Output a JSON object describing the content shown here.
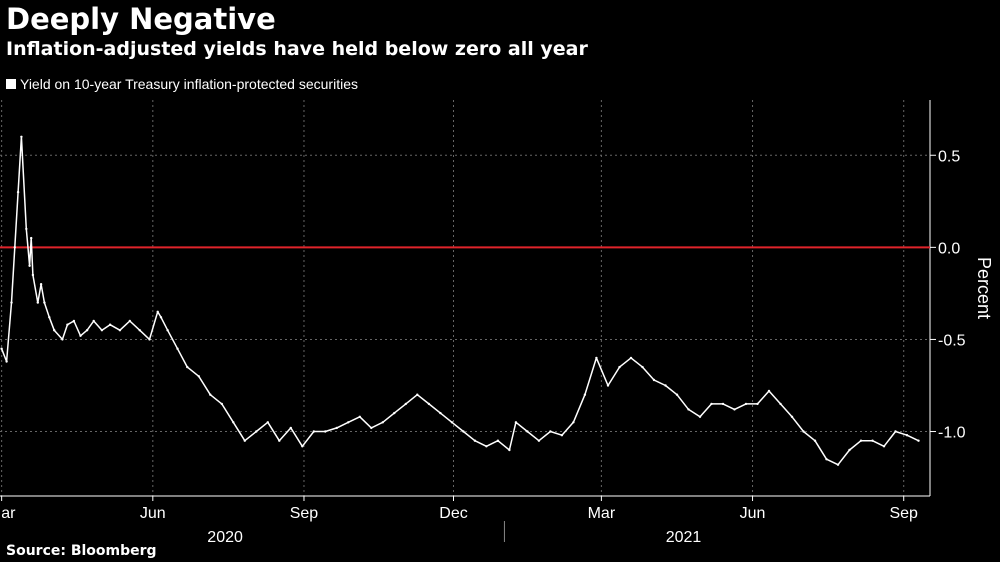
{
  "title": "Deeply Negative",
  "subtitle": "Inflation-adjusted yields have held below zero all year",
  "source": "Source: Bloomberg",
  "colors": {
    "background": "#000000",
    "series": "#ffffff",
    "zero_line": "#e0242b",
    "grid": "#666666"
  },
  "chart_data": {
    "type": "line",
    "series": [
      {
        "name": "Yield on 10-year Treasury inflation-protected securities",
        "x": [
          "2020-03-01",
          "2020-03-04",
          "2020-03-07",
          "2020-03-09",
          "2020-03-11",
          "2020-03-13",
          "2020-03-16",
          "2020-03-18",
          "2020-03-19",
          "2020-03-20",
          "2020-03-23",
          "2020-03-25",
          "2020-03-27",
          "2020-03-30",
          "2020-04-02",
          "2020-04-07",
          "2020-04-10",
          "2020-04-14",
          "2020-04-18",
          "2020-04-22",
          "2020-04-26",
          "2020-05-01",
          "2020-05-06",
          "2020-05-12",
          "2020-05-18",
          "2020-05-24",
          "2020-05-30",
          "2020-06-04",
          "2020-06-06",
          "2020-06-10",
          "2020-06-16",
          "2020-06-22",
          "2020-06-29",
          "2020-07-06",
          "2020-07-13",
          "2020-07-20",
          "2020-07-27",
          "2020-08-03",
          "2020-08-10",
          "2020-08-17",
          "2020-08-24",
          "2020-08-31",
          "2020-09-07",
          "2020-09-14",
          "2020-09-21",
          "2020-09-28",
          "2020-10-05",
          "2020-10-12",
          "2020-10-19",
          "2020-10-26",
          "2020-11-02",
          "2020-11-09",
          "2020-11-16",
          "2020-11-23",
          "2020-11-30",
          "2020-12-07",
          "2020-12-14",
          "2020-12-21",
          "2020-12-28",
          "2021-01-04",
          "2021-01-08",
          "2021-01-15",
          "2021-01-22",
          "2021-01-29",
          "2021-02-05",
          "2021-02-12",
          "2021-02-19",
          "2021-02-26",
          "2021-03-05",
          "2021-03-12",
          "2021-03-19",
          "2021-03-26",
          "2021-04-02",
          "2021-04-09",
          "2021-04-16",
          "2021-04-23",
          "2021-04-30",
          "2021-05-07",
          "2021-05-14",
          "2021-05-21",
          "2021-05-28",
          "2021-06-04",
          "2021-06-11",
          "2021-06-18",
          "2021-06-25",
          "2021-07-02",
          "2021-07-09",
          "2021-07-16",
          "2021-07-23",
          "2021-07-30",
          "2021-08-06",
          "2021-08-13",
          "2021-08-20",
          "2021-08-27",
          "2021-09-03",
          "2021-09-10"
        ],
        "values": [
          -0.55,
          -0.62,
          -0.3,
          0.0,
          0.3,
          0.6,
          0.1,
          -0.1,
          0.05,
          -0.15,
          -0.3,
          -0.2,
          -0.3,
          -0.38,
          -0.45,
          -0.5,
          -0.42,
          -0.4,
          -0.48,
          -0.45,
          -0.4,
          -0.45,
          -0.42,
          -0.45,
          -0.4,
          -0.45,
          -0.5,
          -0.35,
          -0.38,
          -0.45,
          -0.55,
          -0.65,
          -0.7,
          -0.8,
          -0.85,
          -0.95,
          -1.05,
          -1.0,
          -0.95,
          -1.05,
          -0.98,
          -1.08,
          -1.0,
          -1.0,
          -0.98,
          -0.95,
          -0.92,
          -0.98,
          -0.95,
          -0.9,
          -0.85,
          -0.8,
          -0.85,
          -0.9,
          -0.95,
          -1.0,
          -1.05,
          -1.08,
          -1.05,
          -1.1,
          -0.95,
          -1.0,
          -1.05,
          -1.0,
          -1.02,
          -0.95,
          -0.8,
          -0.6,
          -0.75,
          -0.65,
          -0.6,
          -0.65,
          -0.72,
          -0.75,
          -0.8,
          -0.88,
          -0.92,
          -0.85,
          -0.85,
          -0.88,
          -0.85,
          -0.85,
          -0.78,
          -0.85,
          -0.92,
          -1.0,
          -1.05,
          -1.15,
          -1.18,
          -1.1,
          -1.05,
          -1.05,
          -1.08,
          -1.0,
          -1.02,
          -1.05
        ]
      }
    ],
    "ylabel": "Percent",
    "ylim": [
      -1.35,
      0.8
    ],
    "yticks": [
      0.5,
      0.0,
      -0.5,
      -1.0
    ],
    "ytick_labels": [
      "0.5",
      "0.0",
      "-0.5",
      "-1.0"
    ],
    "xlim": [
      "2020-02-29",
      "2021-09-17"
    ],
    "month_ticks": [
      {
        "date": "2020-03-01",
        "label": "Mar"
      },
      {
        "date": "2020-06-01",
        "label": "Jun"
      },
      {
        "date": "2020-09-01",
        "label": "Sep"
      },
      {
        "date": "2020-12-01",
        "label": "Dec"
      },
      {
        "date": "2021-03-01",
        "label": "Mar"
      },
      {
        "date": "2021-06-01",
        "label": "Jun"
      },
      {
        "date": "2021-09-01",
        "label": "Sep"
      }
    ],
    "year_labels": [
      {
        "date": "2020-07-15",
        "label": "2020"
      },
      {
        "date": "2021-04-20",
        "label": "2021"
      }
    ],
    "year_separator": "2021-01-01",
    "reference_line": 0.0,
    "grid": true,
    "legend_position": "top-left"
  }
}
